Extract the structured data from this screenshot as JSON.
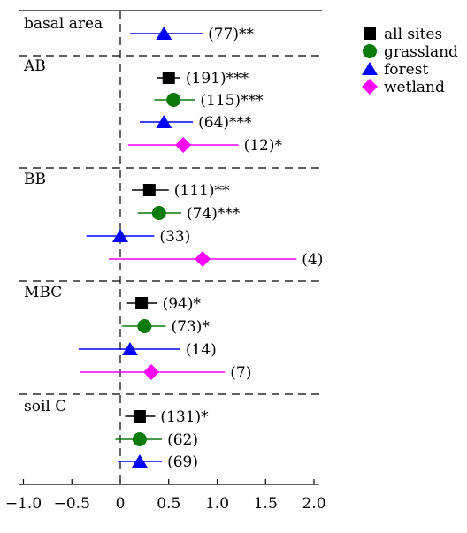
{
  "chart_data": {
    "type": "forest",
    "x_ticks": [
      -1.0,
      -0.5,
      0,
      0.5,
      1.0,
      1.5,
      2.0
    ],
    "x_tick_labels": [
      "−1.0",
      "−0.5",
      "0",
      "0.5",
      "1.0",
      "1.5",
      "2.0"
    ],
    "xlim": [
      -1.05,
      2.05
    ],
    "reference_line": 0,
    "legend": {
      "placement": "top-right",
      "entries": [
        {
          "name": "all sites",
          "color": "#000000",
          "marker": "square"
        },
        {
          "name": "grassland",
          "color": "#0a7a0a",
          "marker": "circle"
        },
        {
          "name": "forest",
          "color": "#0000ff",
          "marker": "triangle"
        },
        {
          "name": "wetland",
          "color": "#ff00ff",
          "marker": "diamond"
        }
      ]
    },
    "groups": [
      {
        "label": "basal area",
        "rows": [
          {
            "series": "forest",
            "estimate": 0.45,
            "ci": [
              0.1,
              0.85
            ],
            "label": "(77)**"
          }
        ]
      },
      {
        "label": "AB",
        "rows": [
          {
            "series": "all sites",
            "estimate": 0.5,
            "ci": [
              0.38,
              0.62
            ],
            "label": "(191)***"
          },
          {
            "series": "grassland",
            "estimate": 0.55,
            "ci": [
              0.35,
              0.77
            ],
            "label": "(115)***"
          },
          {
            "series": "forest",
            "estimate": 0.45,
            "ci": [
              0.2,
              0.75
            ],
            "label": "(64)***"
          },
          {
            "series": "wetland",
            "estimate": 0.65,
            "ci": [
              0.08,
              1.22
            ],
            "label": "(12)*"
          }
        ]
      },
      {
        "label": "BB",
        "rows": [
          {
            "series": "all sites",
            "estimate": 0.3,
            "ci": [
              0.12,
              0.5
            ],
            "label": "(111)**"
          },
          {
            "series": "grassland",
            "estimate": 0.4,
            "ci": [
              0.18,
              0.63
            ],
            "label": "(74)***"
          },
          {
            "series": "forest",
            "estimate": 0.0,
            "ci": [
              -0.35,
              0.35
            ],
            "label": "(33)"
          },
          {
            "series": "wetland",
            "estimate": 0.85,
            "ci": [
              -0.12,
              1.82
            ],
            "label": "(4)"
          }
        ]
      },
      {
        "label": "MBC",
        "rows": [
          {
            "series": "all sites",
            "estimate": 0.22,
            "ci": [
              0.07,
              0.38
            ],
            "label": "(94)*"
          },
          {
            "series": "grassland",
            "estimate": 0.25,
            "ci": [
              0.02,
              0.47
            ],
            "label": "(73)*"
          },
          {
            "series": "forest",
            "estimate": 0.1,
            "ci": [
              -0.43,
              0.62
            ],
            "label": "(14)"
          },
          {
            "series": "wetland",
            "estimate": 0.32,
            "ci": [
              -0.42,
              1.08
            ],
            "label": "(7)"
          }
        ]
      },
      {
        "label": "soil C",
        "rows": [
          {
            "series": "all sites",
            "estimate": 0.2,
            "ci": [
              0.05,
              0.36
            ],
            "label": "(131)*"
          },
          {
            "series": "grassland",
            "estimate": 0.2,
            "ci": [
              -0.05,
              0.43
            ],
            "label": "(62)"
          },
          {
            "series": "forest",
            "estimate": 0.2,
            "ci": [
              -0.03,
              0.43
            ],
            "label": "(69)"
          }
        ]
      }
    ]
  }
}
